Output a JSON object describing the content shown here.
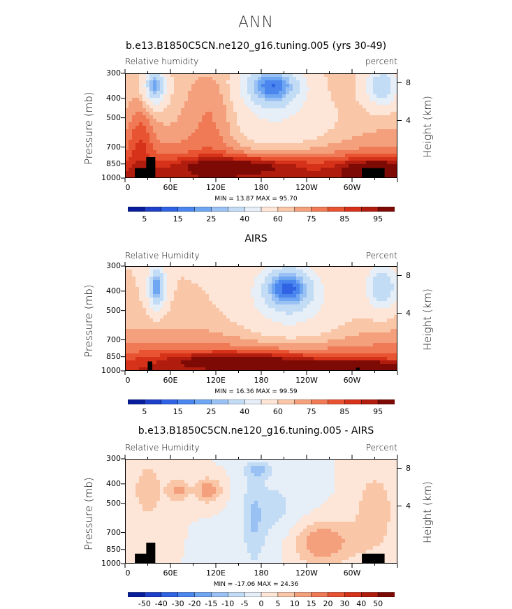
{
  "page": {
    "title": "ANN"
  },
  "panels": [
    {
      "title": "b.e13.B1850C5CN.ne120_g16.tuning.005 (yrs 30-49)",
      "left_label": "Relative humidity",
      "right_label": "percent",
      "minmax": "MIN =   13.87   MAX =   95.70",
      "ylabel": "Pressure (mb)",
      "ylabel_right": "Height (km)",
      "pressure_ticks": [
        "300",
        "400",
        "500",
        "700",
        "850",
        "1000"
      ],
      "height_ticks": [
        "8",
        "4"
      ],
      "x_ticks": [
        "0",
        "60E",
        "120E",
        "180",
        "120W",
        "60W"
      ],
      "colorbar_labels": [
        "5",
        "15",
        "25",
        "40",
        "60",
        "75",
        "85",
        "95"
      ]
    },
    {
      "title": "AIRS",
      "left_label": "Relative Humidity",
      "right_label": "Percent",
      "minmax": "MIN =   16.36   MAX =   99.59",
      "ylabel": "Pressure (mb)",
      "ylabel_right": "Height (km)",
      "pressure_ticks": [
        "300",
        "400",
        "500",
        "700",
        "850",
        "1000"
      ],
      "height_ticks": [
        "8",
        "4"
      ],
      "x_ticks": [
        "0",
        "60E",
        "120E",
        "180",
        "120W",
        "60W"
      ],
      "colorbar_labels": [
        "5",
        "15",
        "25",
        "40",
        "60",
        "75",
        "85",
        "95"
      ]
    },
    {
      "title": "b.e13.B1850C5CN.ne120_g16.tuning.005 - AIRS",
      "left_label": "Relative Humidity",
      "right_label": "Percent",
      "minmax": "MIN = -17.06   MAX =   24.36",
      "ylabel": "Pressure (mb)",
      "ylabel_right": "Height (km)",
      "pressure_ticks": [
        "300",
        "400",
        "500",
        "700",
        "850",
        "1000"
      ],
      "height_ticks": [
        "8",
        "4"
      ],
      "x_ticks": [
        "0",
        "60E",
        "120E",
        "180",
        "120W",
        "60W"
      ],
      "colorbar_labels": [
        "-50",
        "-40",
        "-30",
        "-20",
        "-15",
        "-10",
        "-5",
        "0",
        "5",
        "10",
        "15",
        "20",
        "30",
        "40",
        "50"
      ]
    }
  ],
  "colors": {
    "abs_scale": [
      "#081d9c",
      "#1e3fc8",
      "#2f63e3",
      "#4a86ee",
      "#6ea6f2",
      "#9ac1f4",
      "#c3dcf5",
      "#e6eef7",
      "#fde5d7",
      "#f9c6a8",
      "#f4a07c",
      "#ef7a55",
      "#e85432",
      "#d6321a",
      "#b01c0e",
      "#7d0a05"
    ],
    "diff_scale": [
      "#081d9c",
      "#1e3fc8",
      "#2f63e3",
      "#4a86ee",
      "#6ea6f2",
      "#9ac1f4",
      "#c3dcf5",
      "#e6eef7",
      "#fde5d7",
      "#f9c6a8",
      "#f4a07c",
      "#ef7a55",
      "#e85432",
      "#d6321a",
      "#b01c0e",
      "#7d0a05"
    ]
  },
  "chart_data": [
    {
      "type": "heatmap",
      "title": "b.e13.B1850C5CN.ne120_g16.tuning.005 (yrs 30-49)",
      "xlabel": "",
      "ylabel": "Pressure (mb)",
      "x_ticks": [
        "0",
        "60E",
        "120E",
        "180",
        "120W",
        "60W"
      ],
      "y_ticks_pressure": [
        300,
        400,
        500,
        700,
        850,
        1000
      ],
      "y_ticks_height_km": [
        8,
        4
      ],
      "min": 13.87,
      "max": 95.7,
      "units": "percent",
      "colorbar_levels": [
        5,
        10,
        15,
        20,
        25,
        30,
        40,
        50,
        60,
        65,
        70,
        75,
        80,
        85,
        90,
        95
      ],
      "features": [
        {
          "lon": 40,
          "p": 400,
          "value": 20
        },
        {
          "lon": 195,
          "p": 400,
          "value": 15
        },
        {
          "lon": 340,
          "p": 400,
          "value": 30
        },
        {
          "lon": 150,
          "p": 950,
          "value": 90
        },
        {
          "lon": 330,
          "p": 950,
          "value": 90
        }
      ]
    },
    {
      "type": "heatmap",
      "title": "AIRS",
      "xlabel": "",
      "ylabel": "Pressure (mb)",
      "x_ticks": [
        "0",
        "60E",
        "120E",
        "180",
        "120W",
        "60W"
      ],
      "y_ticks_pressure": [
        300,
        400,
        500,
        700,
        850,
        1000
      ],
      "y_ticks_height_km": [
        8,
        4
      ],
      "min": 16.36,
      "max": 99.59,
      "units": "Percent",
      "colorbar_levels": [
        5,
        10,
        15,
        20,
        25,
        30,
        40,
        50,
        60,
        65,
        70,
        75,
        80,
        85,
        90,
        95
      ],
      "features": [
        {
          "lon": 42,
          "p": 430,
          "value": 20
        },
        {
          "lon": 215,
          "p": 430,
          "value": 15
        },
        {
          "lon": 340,
          "p": 430,
          "value": 30
        },
        {
          "lon": 150,
          "p": 950,
          "value": 92
        },
        {
          "lon": 300,
          "p": 980,
          "value": 95
        }
      ]
    },
    {
      "type": "heatmap",
      "title": "b.e13.B1850C5CN.ne120_g16.tuning.005 - AIRS",
      "xlabel": "",
      "ylabel": "Pressure (mb)",
      "x_ticks": [
        "0",
        "60E",
        "120E",
        "180",
        "120W",
        "60W"
      ],
      "y_ticks_pressure": [
        300,
        400,
        500,
        700,
        850,
        1000
      ],
      "y_ticks_height_km": [
        8,
        4
      ],
      "min": -17.06,
      "max": 24.36,
      "units": "Percent",
      "colorbar_levels": [
        -50,
        -40,
        -30,
        -20,
        -15,
        -10,
        -5,
        0,
        5,
        10,
        15,
        20,
        30,
        40,
        50
      ],
      "features": [
        {
          "lon": 110,
          "p": 500,
          "value": 15
        },
        {
          "lon": 70,
          "p": 500,
          "value": 12
        },
        {
          "lon": 175,
          "p": 400,
          "value": -10
        },
        {
          "lon": 260,
          "p": 850,
          "value": 15
        },
        {
          "lon": 170,
          "p": 750,
          "value": -8
        }
      ]
    }
  ]
}
